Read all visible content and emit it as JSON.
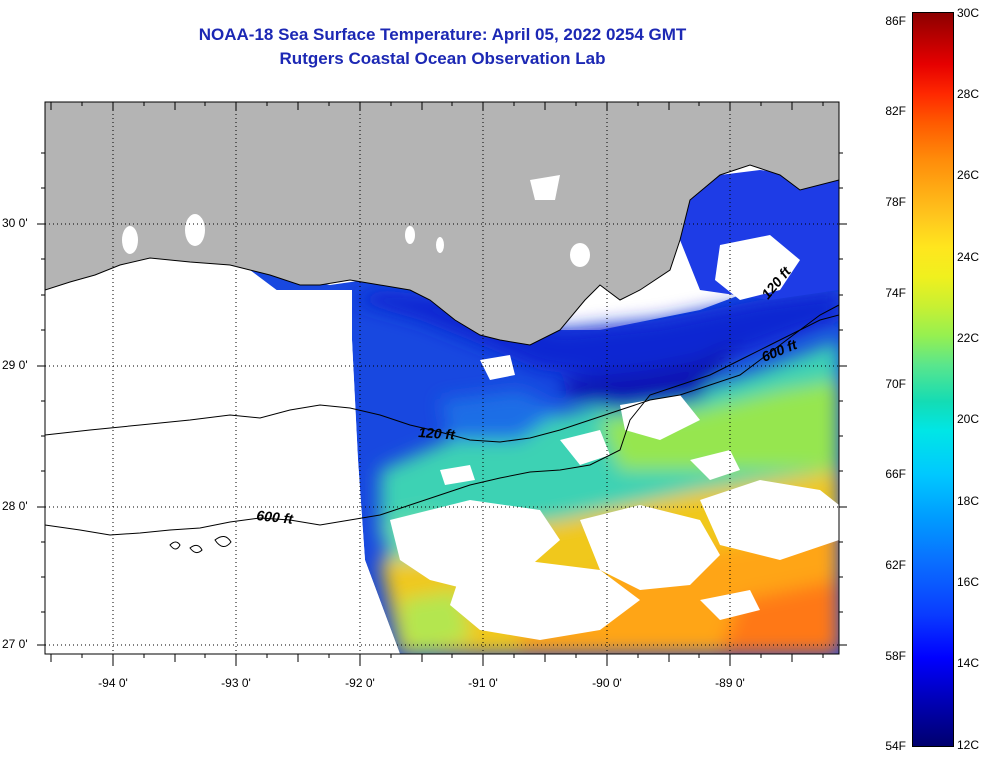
{
  "title": {
    "line1": "NOAA-18 Sea Surface Temperature:  April 05, 2022 0254 GMT",
    "line2": "Rutgers Coastal Ocean Observation Lab"
  },
  "latitude_labels": [
    "30 0'",
    "29 0'",
    "28 0'",
    "27 0'"
  ],
  "longitude_labels": [
    "-94 0'",
    "-93 0'",
    "-92 0'",
    "-91 0'",
    "-90 0'",
    "-89 0'"
  ],
  "isobath_labels": [
    "120 ft",
    "600 ft",
    "600 ft",
    "120 ft"
  ],
  "colorbar": {
    "fahrenheit": [
      "86F",
      "82F",
      "78F",
      "74F",
      "70F",
      "66F",
      "62F",
      "58F",
      "54F"
    ],
    "celsius": [
      "30C",
      "28C",
      "26C",
      "24C",
      "22C",
      "20C",
      "18C",
      "16C",
      "14C",
      "12C"
    ]
  },
  "colors": {
    "land": "#b4b4b4",
    "cloud": "#ffffff",
    "title": "#1c28b4"
  }
}
